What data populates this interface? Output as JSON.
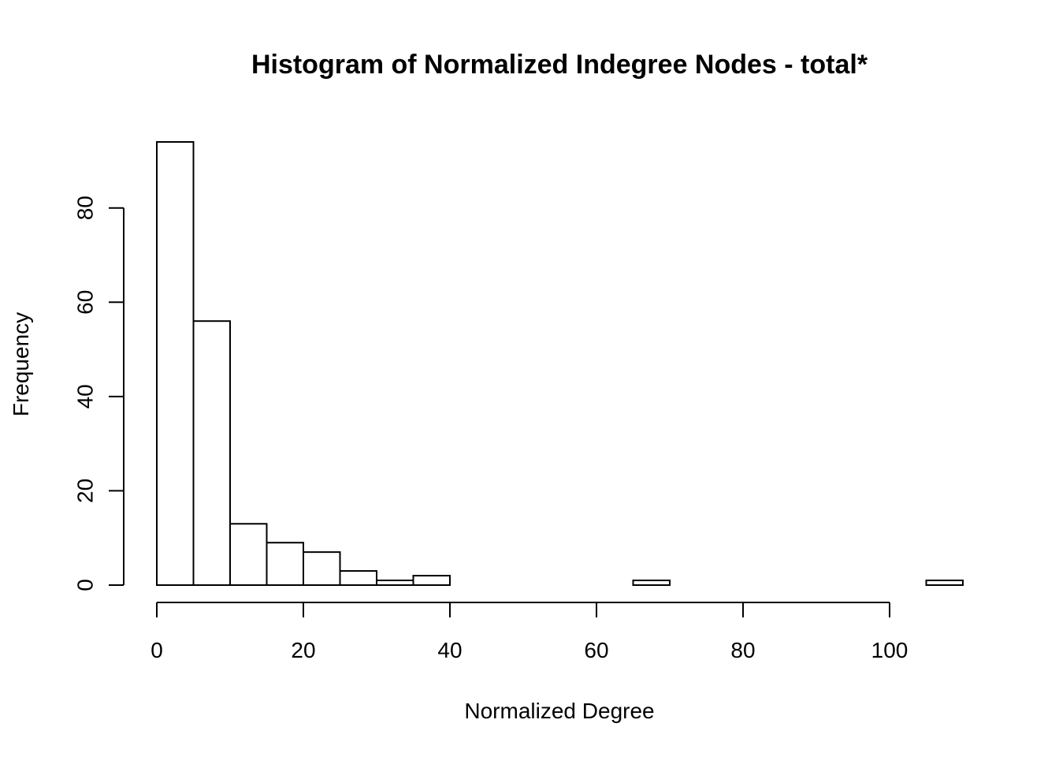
{
  "chart_data": {
    "type": "bar",
    "title": "Histogram of Normalized Indegree Nodes - total*",
    "xlabel": "Normalized Degree",
    "ylabel": "Frequency",
    "bin_width": 5,
    "bins": [
      {
        "x0": 0,
        "x1": 5,
        "count": 94
      },
      {
        "x0": 5,
        "x1": 10,
        "count": 56
      },
      {
        "x0": 10,
        "x1": 15,
        "count": 13
      },
      {
        "x0": 15,
        "x1": 20,
        "count": 9
      },
      {
        "x0": 20,
        "x1": 25,
        "count": 7
      },
      {
        "x0": 25,
        "x1": 30,
        "count": 3
      },
      {
        "x0": 30,
        "x1": 35,
        "count": 1
      },
      {
        "x0": 35,
        "x1": 40,
        "count": 2
      },
      {
        "x0": 40,
        "x1": 45,
        "count": 0
      },
      {
        "x0": 45,
        "x1": 50,
        "count": 0
      },
      {
        "x0": 50,
        "x1": 55,
        "count": 0
      },
      {
        "x0": 55,
        "x1": 60,
        "count": 0
      },
      {
        "x0": 60,
        "x1": 65,
        "count": 0
      },
      {
        "x0": 65,
        "x1": 70,
        "count": 1
      },
      {
        "x0": 70,
        "x1": 75,
        "count": 0
      },
      {
        "x0": 75,
        "x1": 80,
        "count": 0
      },
      {
        "x0": 80,
        "x1": 85,
        "count": 0
      },
      {
        "x0": 85,
        "x1": 90,
        "count": 0
      },
      {
        "x0": 90,
        "x1": 95,
        "count": 0
      },
      {
        "x0": 95,
        "x1": 100,
        "count": 0
      },
      {
        "x0": 100,
        "x1": 105,
        "count": 0
      },
      {
        "x0": 105,
        "x1": 110,
        "count": 1
      }
    ],
    "xlim": [
      0,
      110
    ],
    "ylim": [
      0,
      94
    ],
    "x_ticks": [
      0,
      20,
      40,
      60,
      80,
      100
    ],
    "y_ticks": [
      0,
      20,
      40,
      60,
      80
    ],
    "grid": false,
    "legend": "none",
    "colors": {
      "bar_fill": "#ffffff",
      "bar_stroke": "#000000",
      "axis": "#000000"
    }
  }
}
